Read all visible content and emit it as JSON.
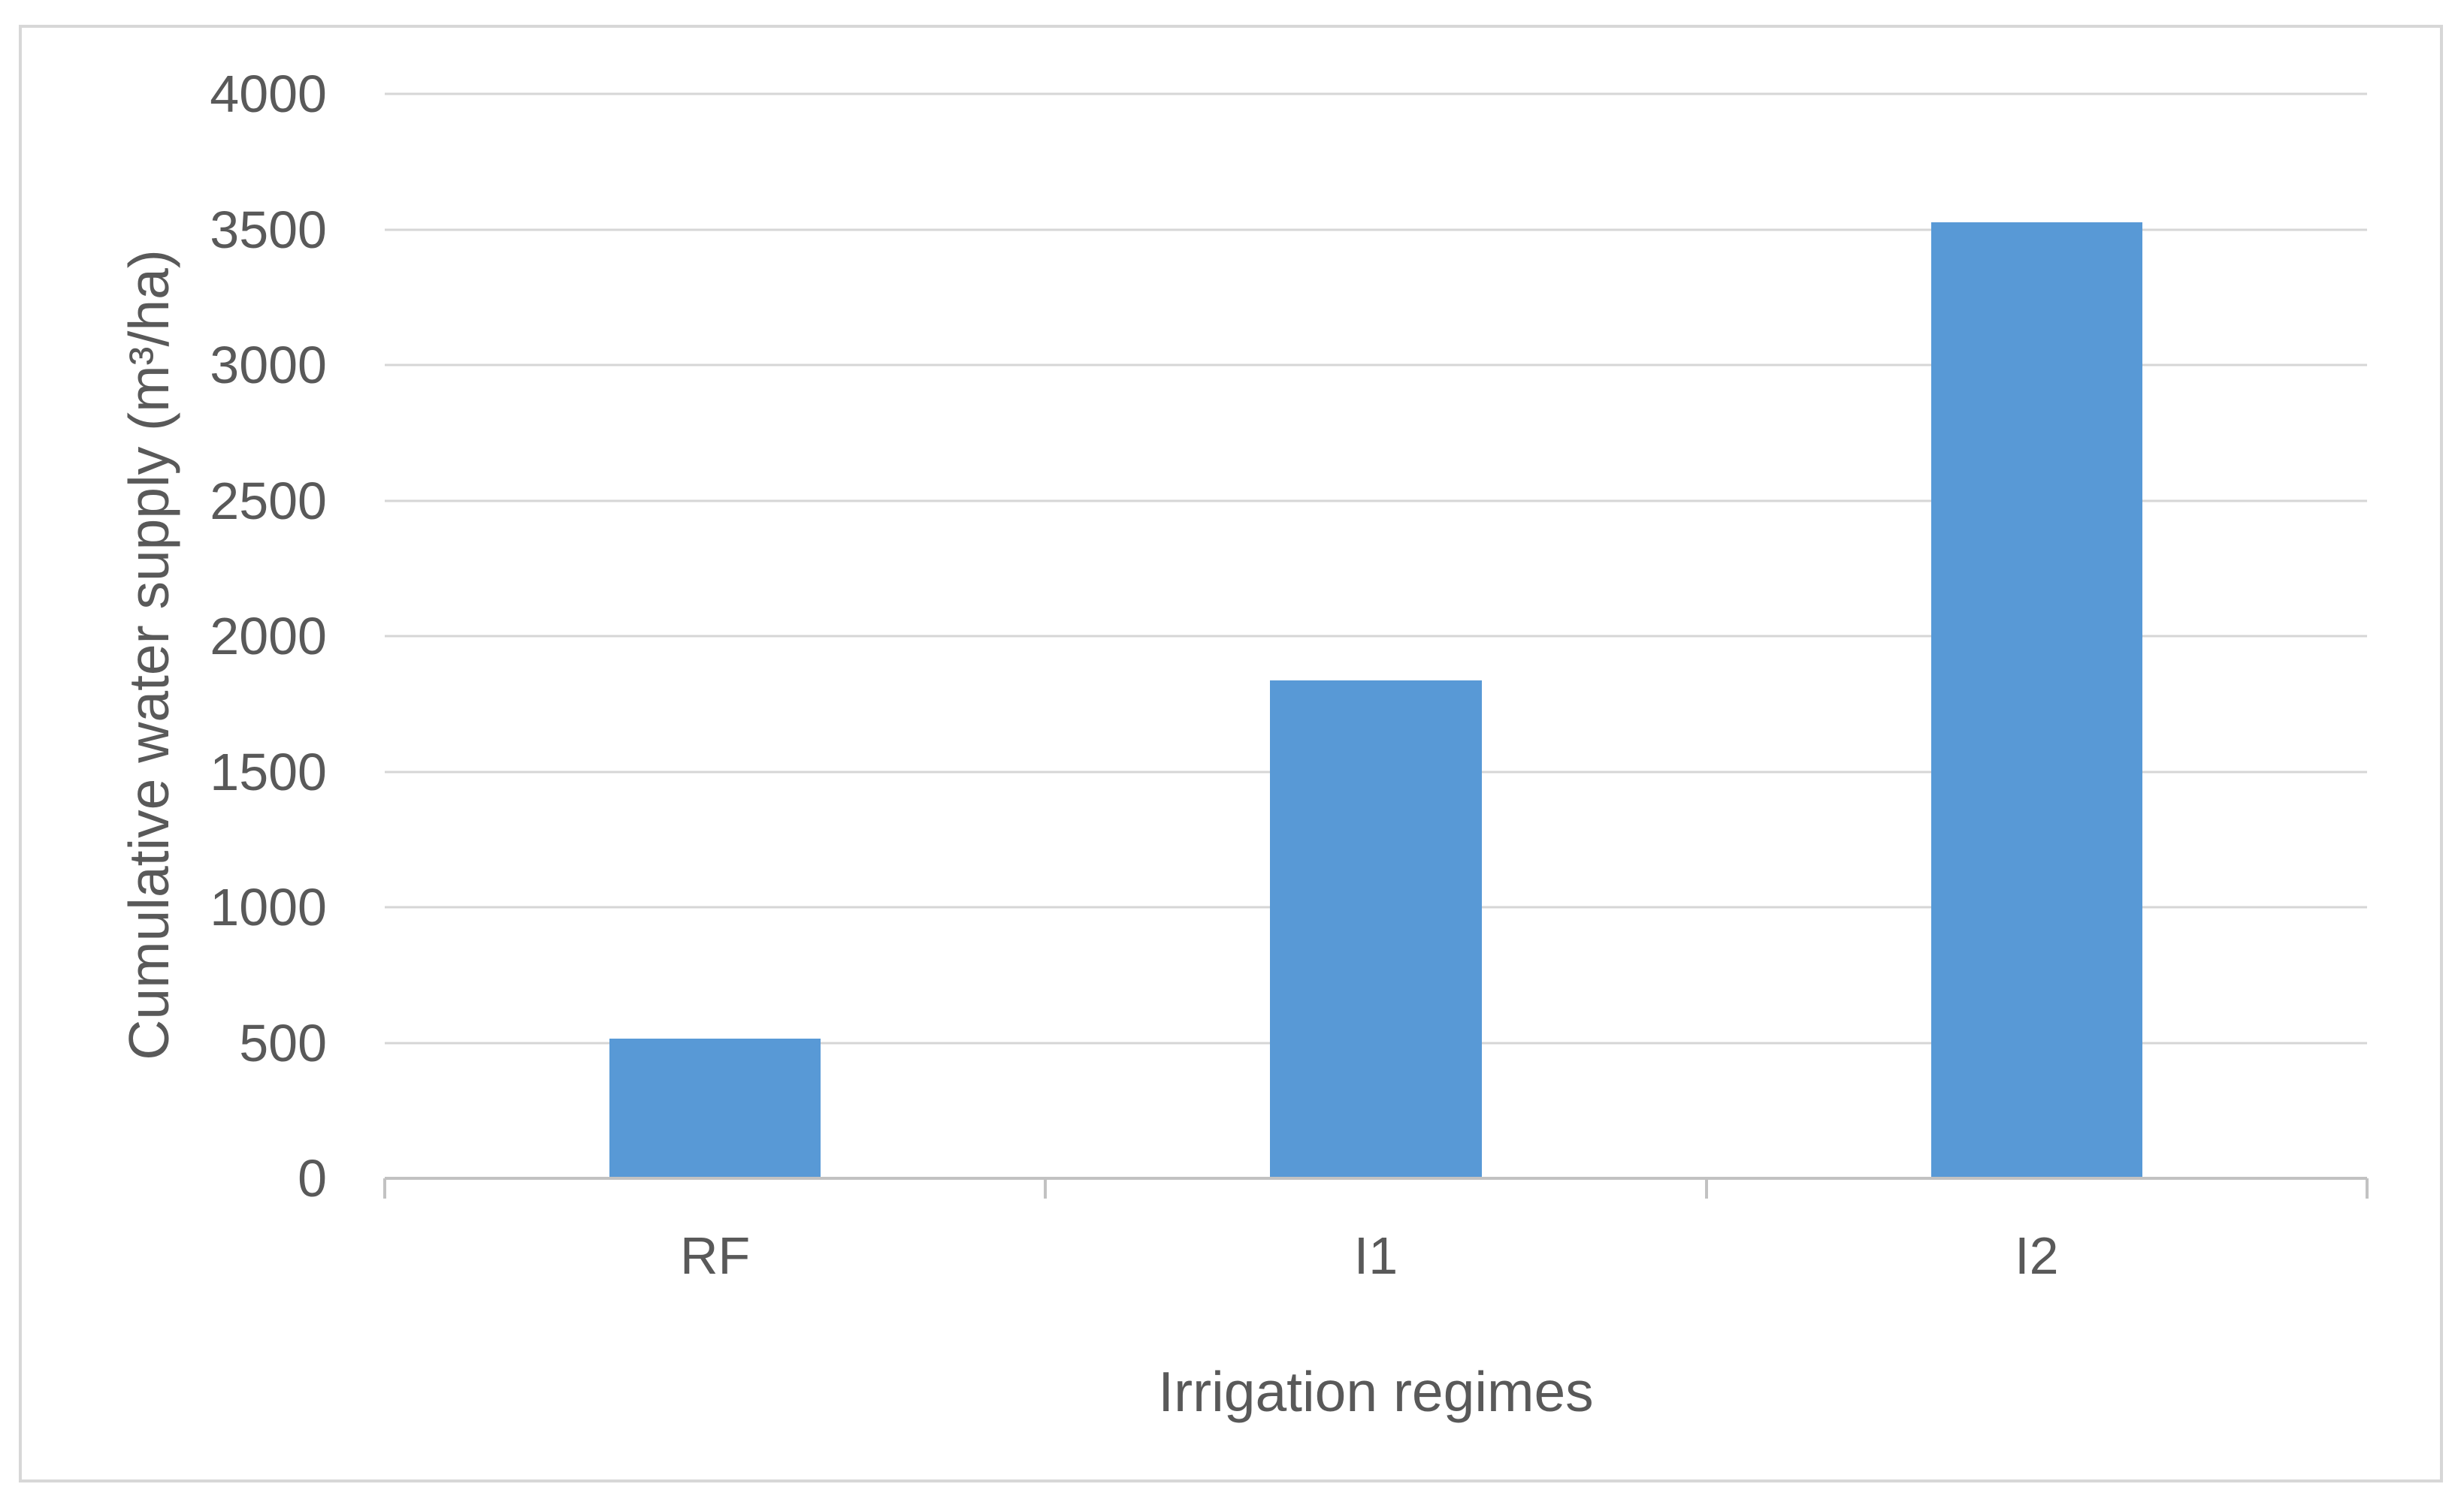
{
  "colors": {
    "bar": "#5899D6",
    "gridline": "#D6D6D6",
    "axis_line": "#C2C2C2",
    "text": "#595959",
    "figure_border": "#D7D7D7",
    "background": "#FFFFFF"
  },
  "chart_data": {
    "type": "bar",
    "categories": [
      "RF",
      "I1",
      "I2"
    ],
    "values": [
      510,
      1830,
      3520
    ],
    "xlabel": "Irrigation regimes",
    "ylabel": "Cumulative water supply (m³/ha)",
    "ylim": [
      0,
      4000
    ],
    "ytick_step": 500,
    "y_ticks": [
      "0",
      "500",
      "1000",
      "1500",
      "2000",
      "2500",
      "3000",
      "3500",
      "4000"
    ],
    "grid": true,
    "legend": false,
    "bar_width_fraction": 0.32
  }
}
